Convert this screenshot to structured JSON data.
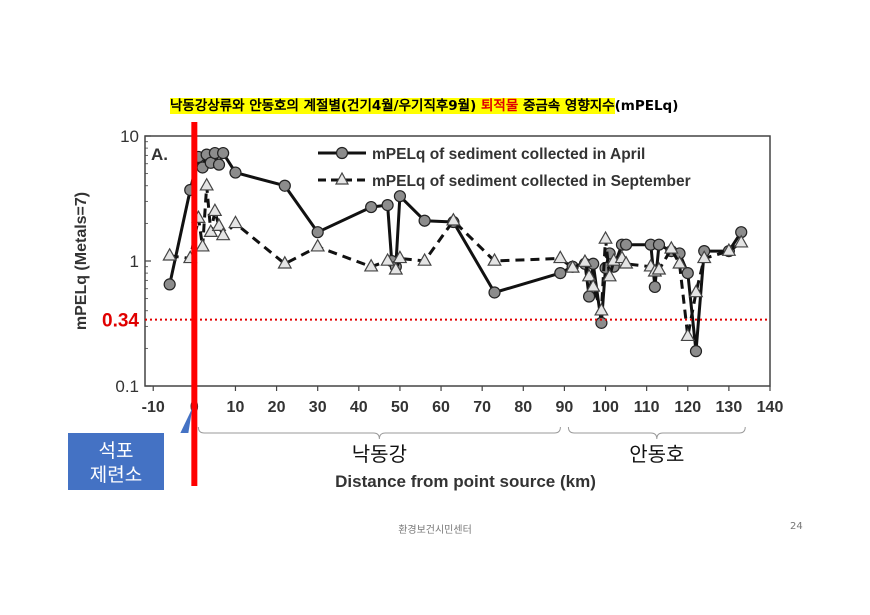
{
  "slide": {
    "title_part1": "낙동강상류와 안동호의 계절별(건기4월/우기직후9월)",
    "title_part2": "퇴적물",
    "title_part3": "중금속 영향지수",
    "title_part4": "(mPELq)",
    "footer": "환경보건시민센터",
    "page_number": "24"
  },
  "chart_data": {
    "type": "line",
    "panel_label": "A.",
    "xlabel": "Distance from point source (km)",
    "ylabel": "mPELq (Metals=7)",
    "y_scale": "log",
    "ylim": [
      0.1,
      10
    ],
    "xlim": [
      -12,
      140
    ],
    "x_ticks": [
      "-10",
      "0",
      "10",
      "20",
      "30",
      "40",
      "50",
      "60",
      "70",
      "80",
      "90",
      "100",
      "110",
      "120",
      "130",
      "140"
    ],
    "y_ticks": [
      "0.1",
      "1",
      "10"
    ],
    "legend_position": "top-right",
    "series": [
      {
        "name": "mPELq of sediment collected in April",
        "style": "solid",
        "marker": "circle",
        "x": [
          -6,
          -1,
          1,
          2,
          3,
          4,
          5,
          6,
          7,
          10,
          22,
          30,
          43,
          47,
          48,
          49,
          50,
          56,
          63,
          73,
          89,
          92,
          95,
          96,
          97,
          99,
          100,
          101,
          102,
          104,
          105,
          111,
          112,
          113,
          116,
          118,
          120,
          122,
          124,
          130,
          133
        ],
        "y": [
          0.65,
          3.7,
          6.8,
          5.6,
          7.1,
          6.1,
          7.3,
          5.9,
          7.3,
          5.1,
          4.0,
          1.7,
          2.7,
          2.8,
          1.0,
          0.9,
          3.3,
          2.1,
          2.05,
          0.56,
          0.8,
          0.9,
          0.95,
          0.52,
          0.95,
          0.32,
          0.88,
          1.15,
          0.9,
          1.35,
          1.35,
          1.35,
          0.62,
          1.35,
          1.2,
          1.15,
          0.8,
          0.19,
          1.2,
          1.2,
          1.7
        ]
      },
      {
        "name": "mPELq of sediment collected in September",
        "style": "dashed",
        "marker": "triangle",
        "x": [
          -6,
          -1,
          1,
          2,
          3,
          4,
          5,
          6,
          7,
          10,
          22,
          30,
          43,
          47,
          49,
          50,
          56,
          63,
          73,
          89,
          92,
          95,
          96,
          97,
          99,
          100,
          101,
          102,
          104,
          105,
          111,
          112,
          113,
          116,
          118,
          120,
          122,
          124,
          130,
          133
        ],
        "y": [
          1.1,
          1.05,
          2.2,
          1.3,
          4.0,
          1.7,
          2.5,
          1.9,
          1.6,
          2.0,
          0.95,
          1.3,
          0.9,
          1.0,
          0.85,
          1.05,
          1.0,
          2.1,
          1.0,
          1.05,
          0.88,
          0.98,
          0.75,
          0.62,
          0.4,
          1.5,
          0.75,
          1.0,
          1.05,
          0.95,
          0.9,
          0.82,
          0.85,
          1.25,
          0.95,
          0.25,
          0.56,
          1.05,
          1.2,
          1.4
        ]
      }
    ],
    "threshold": {
      "value": 0.34,
      "label": "0.34",
      "color": "#e00000"
    },
    "point_source": {
      "x": 0,
      "label_line1": "석포",
      "label_line2": "제련소",
      "line_color": "#ff0000",
      "box_color": "#4472c4"
    },
    "regions": [
      {
        "label": "낙동강",
        "start": 0,
        "end": 90
      },
      {
        "label": "안동호",
        "start": 90,
        "end": 133
      }
    ]
  }
}
